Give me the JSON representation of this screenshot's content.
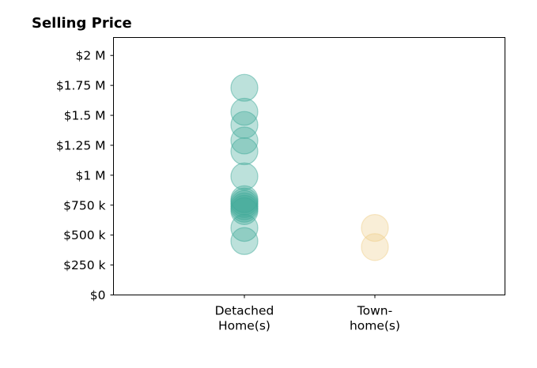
{
  "chart_data": {
    "type": "scatter",
    "title": "Selling Price",
    "xlabel": "",
    "ylabel": "",
    "categories": [
      {
        "lines": [
          "Detached",
          "Home(s)"
        ]
      },
      {
        "lines": [
          "Town-",
          "home(s)"
        ]
      }
    ],
    "ylim": [
      0,
      2150000
    ],
    "y_ticks": [
      {
        "value": 0,
        "label": "$0"
      },
      {
        "value": 250000,
        "label": "$250 k"
      },
      {
        "value": 500000,
        "label": "$500 k"
      },
      {
        "value": 750000,
        "label": "$750 k"
      },
      {
        "value": 1000000,
        "label": "$1 M"
      },
      {
        "value": 1250000,
        "label": "$1.25 M"
      },
      {
        "value": 1500000,
        "label": "$1.5 M"
      },
      {
        "value": 1750000,
        "label": "$1.75 M"
      },
      {
        "value": 2000000,
        "label": "$2 M"
      }
    ],
    "grid": false,
    "series": [
      {
        "category_index": 0,
        "color": "#40a999",
        "values": [
          1730000,
          1530000,
          1420000,
          1290000,
          1200000,
          990000,
          800000,
          780000,
          760000,
          740000,
          720000,
          700000,
          560000,
          450000
        ]
      },
      {
        "category_index": 1,
        "color": "#efcf8c",
        "values": [
          560000,
          400000
        ]
      }
    ]
  }
}
